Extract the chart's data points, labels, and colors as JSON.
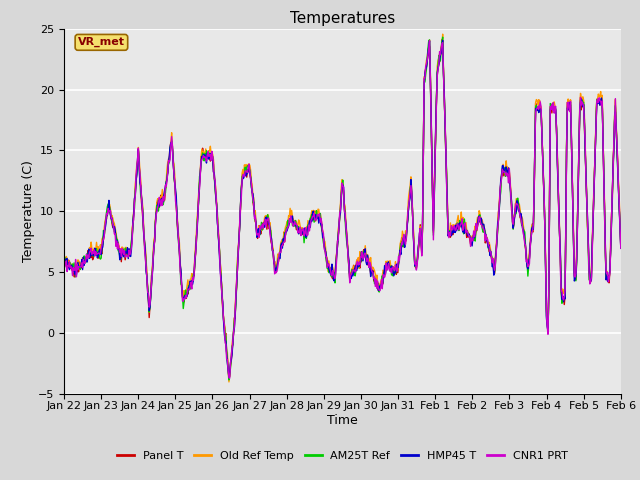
{
  "title": "Temperatures",
  "xlabel": "Time",
  "ylabel": "Temperature (C)",
  "ylim": [
    -5,
    25
  ],
  "yticks": [
    -5,
    0,
    5,
    10,
    15,
    20,
    25
  ],
  "annotation": "VR_met",
  "bg_color": "#d8d8d8",
  "plot_bg_color": "#e8e8e8",
  "series": [
    "Panel T",
    "Old Ref Temp",
    "AM25T Ref",
    "HMP45 T",
    "CNR1 PRT"
  ],
  "colors": [
    "#cc0000",
    "#ff9900",
    "#00cc00",
    "#0000cc",
    "#cc00cc"
  ],
  "linewidth": 1.0,
  "n_points": 720,
  "xtick_labels": [
    "Jan 22",
    "Jan 23",
    "Jan 24",
    "Jan 25",
    "Jan 26",
    "Jan 27",
    "Jan 28",
    "Jan 29",
    "Jan 30",
    "Jan 31",
    "Feb 1",
    "Feb 2",
    "Feb 3",
    "Feb 4",
    "Feb 5",
    "Feb 6"
  ],
  "title_fontsize": 11,
  "axis_label_fontsize": 9,
  "tick_fontsize": 8,
  "legend_fontsize": 8,
  "grid_color": "#ffffff",
  "annot_facecolor": "#f5e06e",
  "annot_edgecolor": "#996600",
  "annot_textcolor": "#880000"
}
